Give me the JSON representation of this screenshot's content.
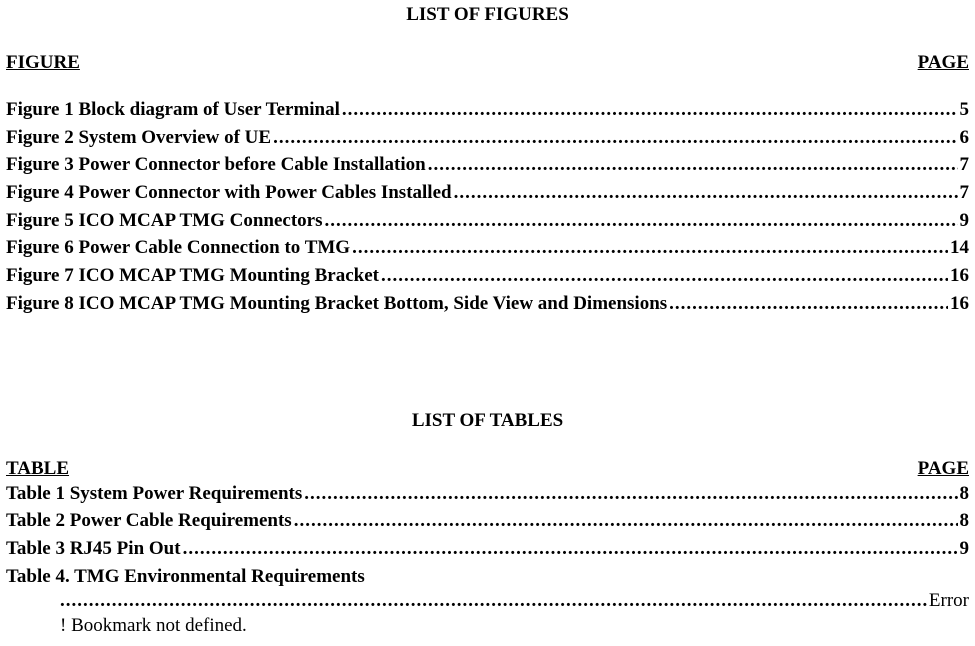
{
  "figures": {
    "title": "LIST OF FIGURES",
    "leftHeader": "FIGURE",
    "rightHeader": "PAGE",
    "entries": [
      {
        "label": "Figure 1  Block diagram of User Terminal",
        "page": "5"
      },
      {
        "label": "Figure 2  System Overview of UE",
        "page": "6"
      },
      {
        "label": "Figure 3  Power Connector before Cable Installation",
        "page": "7"
      },
      {
        "label": "Figure 4  Power Connector with Power Cables Installed",
        "page": "7"
      },
      {
        "label": "Figure 5  ICO MCAP TMG Connectors",
        "page": "9"
      },
      {
        "label": "Figure 6  Power Cable Connection to TMG",
        "page": "14"
      },
      {
        "label": "Figure 7  ICO MCAP TMG Mounting Bracket",
        "page": "16"
      },
      {
        "label": "Figure 8  ICO MCAP TMG Mounting Bracket Bottom, Side View and Dimensions",
        "page": "16"
      }
    ]
  },
  "tables": {
    "title": "LIST OF TABLES",
    "leftHeader": "TABLE",
    "rightHeader": "PAGE",
    "entries": [
      {
        "label": "Table 1  System Power Requirements",
        "page": "8"
      },
      {
        "label": "Table 2  Power Cable Requirements",
        "page": "8"
      },
      {
        "label": "Table 3  RJ45 Pin Out",
        "page": "9"
      }
    ],
    "errorEntry": {
      "label": "Table 4.   TMG Environmental Requirements",
      "errorPre": "Error",
      "errorLine": "! Bookmark not defined."
    }
  }
}
